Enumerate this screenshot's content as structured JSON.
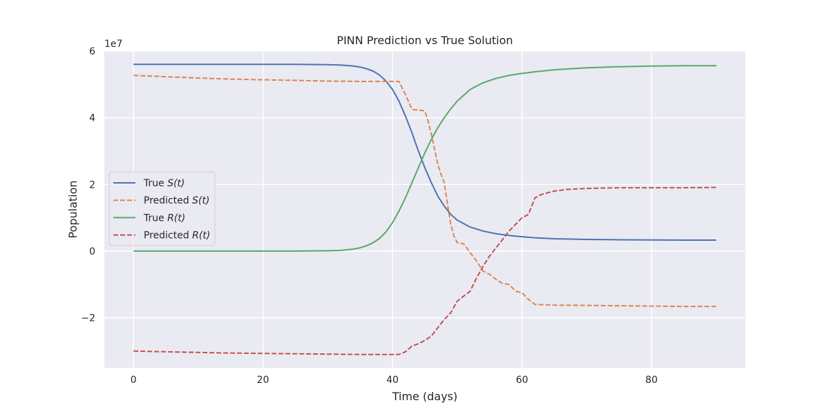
{
  "chart_data": {
    "type": "line",
    "title": "PINN Prediction vs True Solution",
    "xlabel": "Time (days)",
    "ylabel": "Population",
    "y_offset_text": "1e7",
    "xlim": [
      -4.5,
      94.5
    ],
    "ylim": [
      -3.5,
      6.0
    ],
    "x_ticks": [
      0,
      20,
      40,
      60,
      80
    ],
    "x_tick_labels": [
      "0",
      "20",
      "40",
      "60",
      "80"
    ],
    "y_ticks": [
      -2,
      0,
      2,
      4,
      6
    ],
    "y_tick_labels": [
      "−2",
      "0",
      "2",
      "4",
      "6"
    ],
    "grid": true,
    "legend_position": "center-left",
    "series": [
      {
        "name_prefix": "True ",
        "name_math": "S(t)",
        "color": "#4c72b0",
        "dash": "solid",
        "points": [
          [
            0,
            5.6
          ],
          [
            10,
            5.6
          ],
          [
            20,
            5.6
          ],
          [
            25,
            5.6
          ],
          [
            30,
            5.59
          ],
          [
            32,
            5.58
          ],
          [
            34,
            5.55
          ],
          [
            35,
            5.52
          ],
          [
            36,
            5.47
          ],
          [
            37,
            5.4
          ],
          [
            38,
            5.28
          ],
          [
            39,
            5.1
          ],
          [
            40,
            4.85
          ],
          [
            41,
            4.5
          ],
          [
            42,
            4.05
          ],
          [
            43,
            3.55
          ],
          [
            44,
            3.0
          ],
          [
            45,
            2.5
          ],
          [
            46,
            2.05
          ],
          [
            47,
            1.65
          ],
          [
            48,
            1.35
          ],
          [
            49,
            1.1
          ],
          [
            50,
            0.93
          ],
          [
            52,
            0.72
          ],
          [
            54,
            0.6
          ],
          [
            56,
            0.52
          ],
          [
            58,
            0.47
          ],
          [
            60,
            0.43
          ],
          [
            62,
            0.4
          ],
          [
            65,
            0.37
          ],
          [
            70,
            0.35
          ],
          [
            75,
            0.34
          ],
          [
            80,
            0.335
          ],
          [
            85,
            0.33
          ],
          [
            90,
            0.33
          ]
        ]
      },
      {
        "name_prefix": "Predicted ",
        "name_math": "S(t)",
        "color": "#dd8452",
        "dash": "dashed",
        "points": [
          [
            0,
            5.27
          ],
          [
            5,
            5.23
          ],
          [
            10,
            5.19
          ],
          [
            15,
            5.16
          ],
          [
            20,
            5.14
          ],
          [
            25,
            5.12
          ],
          [
            30,
            5.1
          ],
          [
            35,
            5.09
          ],
          [
            38,
            5.09
          ],
          [
            41,
            5.09
          ],
          [
            42,
            4.7
          ],
          [
            43,
            4.25
          ],
          [
            44.5,
            4.22
          ],
          [
            45,
            4.2
          ],
          [
            45.5,
            3.9
          ],
          [
            46,
            3.5
          ],
          [
            46.5,
            3.05
          ],
          [
            47,
            2.6
          ],
          [
            47.5,
            2.3
          ],
          [
            48,
            2.05
          ],
          [
            48.5,
            1.4
          ],
          [
            49,
            0.8
          ],
          [
            49.5,
            0.45
          ],
          [
            50,
            0.25
          ],
          [
            51,
            0.22
          ],
          [
            52,
            -0.05
          ],
          [
            53,
            -0.3
          ],
          [
            54,
            -0.6
          ],
          [
            55,
            -0.7
          ],
          [
            56,
            -0.85
          ],
          [
            57,
            -0.97
          ],
          [
            58,
            -1.0
          ],
          [
            59,
            -1.2
          ],
          [
            60,
            -1.25
          ],
          [
            61,
            -1.45
          ],
          [
            62,
            -1.6
          ],
          [
            65,
            -1.62
          ],
          [
            70,
            -1.63
          ],
          [
            75,
            -1.64
          ],
          [
            80,
            -1.65
          ],
          [
            85,
            -1.66
          ],
          [
            90,
            -1.66
          ]
        ]
      },
      {
        "name_prefix": "True ",
        "name_math": "R(t)",
        "color": "#55a868",
        "dash": "solid",
        "points": [
          [
            0,
            0.0
          ],
          [
            10,
            0.0
          ],
          [
            20,
            0.0
          ],
          [
            25,
            0.0
          ],
          [
            30,
            0.01
          ],
          [
            32,
            0.02
          ],
          [
            34,
            0.06
          ],
          [
            35,
            0.1
          ],
          [
            36,
            0.16
          ],
          [
            37,
            0.25
          ],
          [
            38,
            0.38
          ],
          [
            39,
            0.58
          ],
          [
            40,
            0.85
          ],
          [
            41,
            1.2
          ],
          [
            42,
            1.6
          ],
          [
            43,
            2.05
          ],
          [
            44,
            2.5
          ],
          [
            45,
            2.95
          ],
          [
            46,
            3.35
          ],
          [
            47,
            3.7
          ],
          [
            48,
            4.0
          ],
          [
            49,
            4.27
          ],
          [
            50,
            4.5
          ],
          [
            52,
            4.85
          ],
          [
            54,
            5.05
          ],
          [
            56,
            5.18
          ],
          [
            58,
            5.27
          ],
          [
            60,
            5.33
          ],
          [
            62,
            5.38
          ],
          [
            65,
            5.44
          ],
          [
            70,
            5.5
          ],
          [
            75,
            5.53
          ],
          [
            80,
            5.55
          ],
          [
            85,
            5.56
          ],
          [
            90,
            5.56
          ]
        ]
      },
      {
        "name_prefix": "Predicted ",
        "name_math": "R(t)",
        "color": "#c44e52",
        "dash": "dashed",
        "points": [
          [
            0,
            -3.0
          ],
          [
            5,
            -3.02
          ],
          [
            10,
            -3.04
          ],
          [
            15,
            -3.06
          ],
          [
            20,
            -3.07
          ],
          [
            25,
            -3.08
          ],
          [
            30,
            -3.09
          ],
          [
            35,
            -3.1
          ],
          [
            38,
            -3.1
          ],
          [
            41,
            -3.1
          ],
          [
            42,
            -3.02
          ],
          [
            43,
            -2.85
          ],
          [
            44,
            -2.78
          ],
          [
            45,
            -2.68
          ],
          [
            46,
            -2.55
          ],
          [
            47,
            -2.3
          ],
          [
            48,
            -2.05
          ],
          [
            49,
            -1.85
          ],
          [
            50,
            -1.5
          ],
          [
            51,
            -1.35
          ],
          [
            52,
            -1.2
          ],
          [
            53,
            -0.8
          ],
          [
            54,
            -0.45
          ],
          [
            55,
            -0.15
          ],
          [
            56,
            0.1
          ],
          [
            57,
            0.35
          ],
          [
            58,
            0.6
          ],
          [
            59,
            0.8
          ],
          [
            60,
            1.0
          ],
          [
            61,
            1.1
          ],
          [
            62,
            1.6
          ],
          [
            63,
            1.7
          ],
          [
            64,
            1.75
          ],
          [
            65,
            1.8
          ],
          [
            67,
            1.85
          ],
          [
            70,
            1.88
          ],
          [
            75,
            1.9
          ],
          [
            80,
            1.9
          ],
          [
            85,
            1.9
          ],
          [
            90,
            1.91
          ]
        ]
      }
    ]
  }
}
